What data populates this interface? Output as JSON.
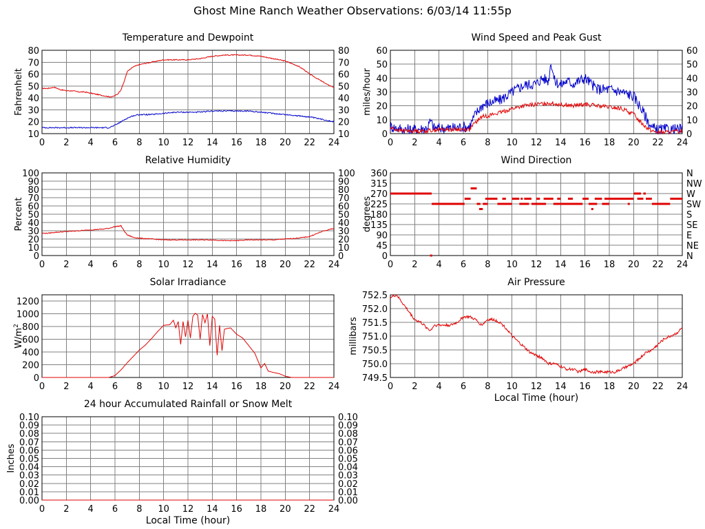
{
  "page": {
    "title": "Ghost Mine Ranch Weather Observations: 6/03/14 11:55p"
  },
  "colors": {
    "primary": "#e00000",
    "secondary": "#0000cc",
    "grid": "#808080",
    "axis": "#000000"
  },
  "chart_data": [
    {
      "id": "temperature",
      "type": "line",
      "title": "Temperature and Dewpoint",
      "ylabel": "Fahrenheit",
      "xlabel": "",
      "xlim": [
        0,
        24
      ],
      "ylim": [
        10,
        80
      ],
      "x_ticks": [
        0,
        2,
        4,
        6,
        8,
        10,
        12,
        14,
        16,
        18,
        20,
        22,
        24
      ],
      "y_ticks": [
        10,
        20,
        30,
        40,
        50,
        60,
        70,
        80
      ],
      "y_tick_labels": [
        "10",
        "20",
        "30",
        "40",
        "50",
        "60",
        "70",
        "80"
      ],
      "right_tick_labels": [
        "10",
        "20",
        "30",
        "40",
        "50",
        "60",
        "70",
        "80"
      ],
      "grid": true,
      "series": [
        {
          "color": "#e00000",
          "noise": 0.4,
          "x": [
            0,
            0.5,
            1,
            1.5,
            2,
            2.5,
            3,
            3.5,
            4,
            4.5,
            5,
            5.5,
            5.8,
            6.2,
            6.5,
            6.8,
            7,
            7.5,
            8,
            9,
            10,
            11,
            12,
            13,
            14,
            15,
            16,
            17,
            18,
            19,
            20,
            20.5,
            21,
            21.5,
            22,
            22.5,
            23,
            23.5,
            24
          ],
          "y": [
            48,
            48,
            49,
            47,
            46,
            46,
            45,
            45,
            44,
            43,
            42,
            41,
            41,
            43,
            47,
            55,
            62,
            66,
            68,
            70,
            72,
            72,
            72,
            73,
            75,
            76,
            76,
            76,
            75,
            73,
            71,
            69,
            67,
            64,
            60,
            57,
            54,
            51,
            49
          ]
        },
        {
          "color": "#0000cc",
          "noise": 0.5,
          "x": [
            0,
            1,
            2,
            3,
            4,
            5,
            5.5,
            6,
            6.5,
            7,
            7.5,
            8,
            9,
            10,
            11,
            12,
            13,
            14,
            15,
            16,
            17,
            18,
            19,
            20,
            21,
            22,
            23,
            24
          ],
          "y": [
            15,
            15,
            15,
            15,
            15,
            15,
            15,
            17,
            20,
            23,
            25,
            26,
            26,
            27,
            28,
            28,
            28,
            29,
            29,
            29,
            29,
            28,
            27,
            26,
            25,
            24,
            22,
            20
          ]
        }
      ]
    },
    {
      "id": "wind_speed",
      "type": "line",
      "title": "Wind Speed and Peak Gust",
      "ylabel": "miles/hour",
      "xlabel": "",
      "xlim": [
        0,
        24
      ],
      "ylim": [
        0,
        60
      ],
      "x_ticks": [
        0,
        2,
        4,
        6,
        8,
        10,
        12,
        14,
        16,
        18,
        20,
        22,
        24
      ],
      "y_ticks": [
        0,
        10,
        20,
        30,
        40,
        50,
        60
      ],
      "y_tick_labels": [
        "0",
        "10",
        "20",
        "30",
        "40",
        "50",
        "60"
      ],
      "right_tick_labels": [
        "0",
        "10",
        "20",
        "30",
        "40",
        "50",
        "60"
      ],
      "grid": true,
      "series": [
        {
          "color": "#0000cc",
          "noise": 4,
          "x": [
            0,
            0.5,
            1,
            2,
            3,
            3.3,
            3.6,
            4,
            5,
            6,
            6.5,
            7,
            7.5,
            8,
            9,
            10,
            11,
            12,
            12.5,
            13,
            13.2,
            13.5,
            14,
            14.5,
            15,
            15.5,
            16,
            16.5,
            17,
            18,
            19,
            20,
            20.5,
            21,
            21.5,
            22,
            23,
            24
          ],
          "y": [
            5,
            4,
            3,
            3,
            4,
            9,
            4,
            4,
            4,
            5,
            5,
            14,
            20,
            22,
            24,
            30,
            35,
            36,
            40,
            38,
            52,
            38,
            35,
            38,
            36,
            38,
            40,
            36,
            32,
            32,
            30,
            27,
            20,
            12,
            4,
            3,
            3,
            3
          ]
        },
        {
          "color": "#e00000",
          "noise": 1.5,
          "x": [
            0,
            1,
            2,
            3,
            4,
            5,
            6,
            6.5,
            7,
            7.5,
            8,
            9,
            10,
            11,
            12,
            13,
            14,
            15,
            16,
            17,
            18,
            19,
            20,
            20.5,
            21,
            21.5,
            22,
            23,
            24
          ],
          "y": [
            4,
            2,
            2,
            2,
            3,
            3,
            3,
            3,
            8,
            12,
            13,
            15,
            18,
            20,
            21,
            22,
            21,
            20,
            21,
            20,
            19,
            18,
            14,
            9,
            5,
            2,
            1,
            1,
            2
          ]
        }
      ]
    },
    {
      "id": "humidity",
      "type": "line",
      "title": "Relative Humidity",
      "ylabel": "Percent",
      "xlabel": "",
      "xlim": [
        0,
        24
      ],
      "ylim": [
        0,
        100
      ],
      "x_ticks": [
        0,
        2,
        4,
        6,
        8,
        10,
        12,
        14,
        16,
        18,
        20,
        22,
        24
      ],
      "y_ticks": [
        0,
        10,
        20,
        30,
        40,
        50,
        60,
        70,
        80,
        90,
        100
      ],
      "y_tick_labels": [
        "0",
        "10",
        "20",
        "30",
        "40",
        "50",
        "60",
        "70",
        "80",
        "90",
        "100"
      ],
      "right_tick_labels": [
        "0",
        "10",
        "20",
        "30",
        "40",
        "50",
        "60",
        "70",
        "80",
        "90",
        "100"
      ],
      "grid": true,
      "series": [
        {
          "color": "#e00000",
          "noise": 0.5,
          "x": [
            0,
            0.5,
            1,
            2,
            3,
            4,
            5,
            5.5,
            6,
            6.5,
            6.7,
            7,
            7.5,
            8,
            9,
            10,
            11,
            12,
            13,
            14,
            15,
            16,
            17,
            18,
            19,
            20,
            21,
            22,
            23,
            24
          ],
          "y": [
            27,
            27,
            28,
            29,
            30,
            31,
            32,
            33,
            35,
            36,
            31,
            25,
            22,
            21,
            20,
            19,
            19,
            19,
            19,
            19,
            18,
            18,
            19,
            19,
            19,
            20,
            21,
            23,
            29,
            33
          ]
        }
      ]
    },
    {
      "id": "wind_direction",
      "type": "scatter",
      "title": "Wind Direction",
      "ylabel": "degrees",
      "xlabel": "",
      "xlim": [
        0,
        24
      ],
      "ylim": [
        0,
        360
      ],
      "x_ticks": [
        0,
        2,
        4,
        6,
        8,
        10,
        12,
        14,
        16,
        18,
        20,
        22,
        24
      ],
      "y_ticks": [
        0,
        45,
        90,
        135,
        180,
        225,
        270,
        315,
        360
      ],
      "y_tick_labels": [
        "0",
        "45",
        "90",
        "135",
        "180",
        "225",
        "270",
        "315",
        "360"
      ],
      "right_tick_labels": [
        "N",
        "NE",
        "E",
        "SE",
        "S",
        "SW",
        "W",
        "NW",
        "N"
      ],
      "grid": true,
      "series": [
        {
          "color": "#e00000",
          "segments": [
            [
              0,
              3.4,
              270
            ],
            [
              3.4,
              6.1,
              225
            ],
            [
              6.1,
              6.6,
              247.5
            ],
            [
              6.6,
              7.1,
              292.5
            ],
            [
              7.1,
              7.4,
              225
            ],
            [
              7.3,
              7.6,
              202.5
            ],
            [
              7.6,
              8,
              225
            ],
            [
              7.8,
              8.8,
              247.5
            ],
            [
              8.8,
              10,
              225
            ],
            [
              9.2,
              9.5,
              247.5
            ],
            [
              10,
              10.6,
              247.5
            ],
            [
              10.6,
              11.4,
              225
            ],
            [
              11,
              11.6,
              247.5
            ],
            [
              11.6,
              12.8,
              225
            ],
            [
              12,
              12.3,
              247.5
            ],
            [
              12.6,
              13.4,
              247.5
            ],
            [
              13.4,
              14,
              225
            ],
            [
              13.8,
              14,
              247.5
            ],
            [
              14,
              15.8,
              225
            ],
            [
              14.6,
              15,
              247.5
            ],
            [
              15.8,
              16.3,
              247.5
            ],
            [
              16.3,
              17,
              225
            ],
            [
              16.8,
              17.4,
              247.5
            ],
            [
              17.4,
              18,
              225
            ],
            [
              17.6,
              18,
              247.5
            ],
            [
              18,
              20,
              247.5
            ],
            [
              20,
              20.6,
              270
            ],
            [
              20.3,
              20.8,
              247.5
            ],
            [
              20.8,
              21,
              270
            ],
            [
              21,
              21.5,
              247.5
            ],
            [
              21.5,
              23,
              225
            ],
            [
              23,
              24,
              247.5
            ]
          ],
          "points": [
            [
              3.35,
              0
            ],
            [
              16.6,
              202.5
            ],
            [
              13.8,
              247.5
            ],
            [
              10.8,
              247.5
            ],
            [
              19.6,
              225
            ],
            [
              20.4,
              247.5
            ]
          ]
        }
      ]
    },
    {
      "id": "solar",
      "type": "line",
      "title": "Solar Irradiance",
      "ylabel": "W/m2",
      "xlabel": "",
      "xlim": [
        0,
        24
      ],
      "ylim": [
        0,
        1300
      ],
      "x_ticks": [
        0,
        2,
        4,
        6,
        8,
        10,
        12,
        14,
        16,
        18,
        20,
        22,
        24
      ],
      "y_ticks": [
        0,
        200,
        400,
        600,
        800,
        1000,
        1200
      ],
      "y_tick_labels": [
        "0",
        "200",
        "400",
        "600",
        "800",
        "1000",
        "1200"
      ],
      "right_tick_labels": [],
      "grid": true,
      "series": [
        {
          "color": "#e00000",
          "noise": 0,
          "x": [
            0,
            5,
            5.5,
            6,
            6.5,
            7,
            7.5,
            8,
            8.5,
            9,
            9.5,
            10,
            10.5,
            10.8,
            11,
            11.2,
            11.4,
            11.6,
            11.8,
            12,
            12.2,
            12.4,
            12.6,
            12.8,
            13,
            13.2,
            13.4,
            13.6,
            13.8,
            14,
            14.2,
            14.4,
            14.6,
            14.8,
            15,
            15.5,
            16,
            16.5,
            17,
            17.5,
            17.8,
            18,
            18.3,
            18.6,
            19,
            19.5,
            20,
            20.5,
            21,
            24
          ],
          "y": [
            0,
            0,
            0,
            30,
            120,
            230,
            330,
            430,
            510,
            610,
            720,
            820,
            830,
            900,
            780,
            880,
            520,
            880,
            640,
            900,
            620,
            960,
            1010,
            980,
            600,
            990,
            860,
            1000,
            500,
            960,
            920,
            350,
            820,
            420,
            760,
            780,
            680,
            620,
            500,
            380,
            240,
            150,
            220,
            100,
            80,
            60,
            20,
            0,
            0,
            0
          ]
        }
      ]
    },
    {
      "id": "pressure",
      "type": "line",
      "title": "Air Pressure",
      "ylabel": "millibars",
      "xlabel": "Local Time (hour)",
      "xlim": [
        0,
        24
      ],
      "ylim": [
        749.5,
        752.5
      ],
      "x_ticks": [
        0,
        2,
        4,
        6,
        8,
        10,
        12,
        14,
        16,
        18,
        20,
        22,
        24
      ],
      "y_ticks": [
        749.5,
        750.0,
        750.5,
        751.0,
        751.5,
        752.0,
        752.5
      ],
      "y_tick_labels": [
        "749.5",
        "750.0",
        "750.5",
        "751.0",
        "751.5",
        "752.0",
        "752.5"
      ],
      "right_tick_labels": [],
      "grid": true,
      "series": [
        {
          "color": "#e00000",
          "noise": 0.05,
          "x": [
            0,
            0.5,
            1,
            1.5,
            2,
            2.5,
            3,
            3.3,
            3.6,
            4,
            5,
            5.5,
            6,
            6.5,
            7,
            7.5,
            8,
            8.5,
            9,
            9.5,
            10,
            10.5,
            11,
            11.5,
            12,
            12.5,
            13,
            13.5,
            14,
            14.5,
            15,
            15.5,
            16,
            16.5,
            17,
            17.5,
            18,
            18.5,
            19,
            19.5,
            20,
            20.5,
            21,
            21.5,
            22,
            22.5,
            23,
            23.5,
            24
          ],
          "y": [
            752.4,
            752.5,
            752.2,
            751.9,
            751.6,
            751.5,
            751.3,
            751.2,
            751.4,
            751.4,
            751.4,
            751.5,
            751.7,
            751.7,
            751.6,
            751.4,
            751.6,
            751.6,
            751.5,
            751.3,
            751.0,
            750.8,
            750.6,
            750.4,
            750.3,
            750.2,
            750.0,
            750.0,
            749.9,
            749.8,
            749.8,
            749.7,
            749.8,
            749.7,
            749.7,
            749.7,
            749.7,
            749.7,
            749.8,
            749.9,
            750.0,
            750.2,
            750.4,
            750.5,
            750.7,
            750.9,
            751.0,
            751.1,
            751.3
          ]
        }
      ]
    },
    {
      "id": "rainfall",
      "type": "line",
      "title": "24 hour Accumulated Rainfall or Snow Melt",
      "ylabel": "Inches",
      "xlabel": "Local Time (hour)",
      "xlim": [
        0,
        24
      ],
      "ylim": [
        0,
        0.1
      ],
      "x_ticks": [
        0,
        2,
        4,
        6,
        8,
        10,
        12,
        14,
        16,
        18,
        20,
        22,
        24
      ],
      "y_ticks": [
        0,
        0.01,
        0.02,
        0.03,
        0.04,
        0.05,
        0.06,
        0.07,
        0.08,
        0.09,
        0.1
      ],
      "y_tick_labels": [
        "0.00",
        "0.01",
        "0.02",
        "0.03",
        "0.04",
        "0.05",
        "0.06",
        "0.07",
        "0.08",
        "0.09",
        "0.10"
      ],
      "right_tick_labels": [
        "0.00",
        "0.01",
        "0.02",
        "0.03",
        "0.04",
        "0.05",
        "0.06",
        "0.07",
        "0.08",
        "0.09",
        "0.10"
      ],
      "grid": true,
      "series": [
        {
          "color": "#e00000",
          "noise": 0,
          "x": [
            0,
            24
          ],
          "y": [
            0,
            0
          ]
        }
      ]
    }
  ]
}
